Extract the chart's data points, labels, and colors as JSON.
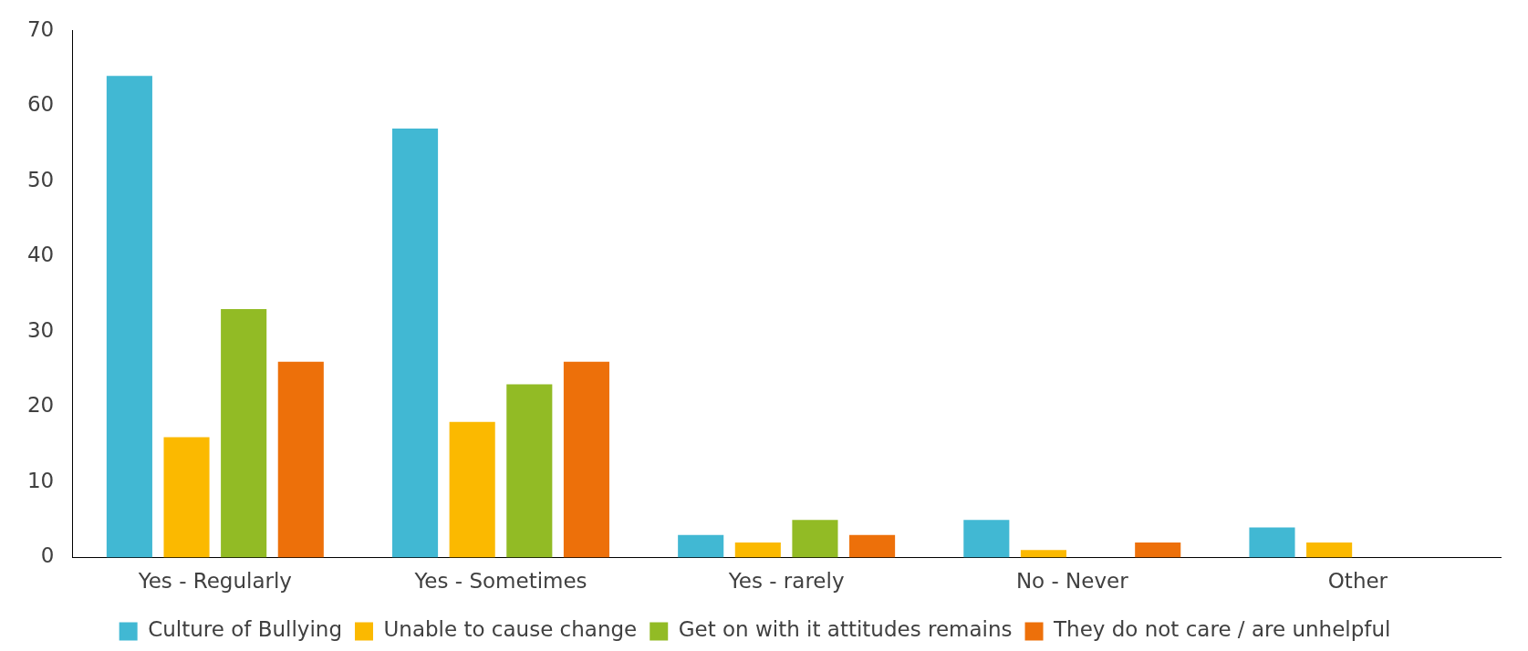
{
  "chart_data": {
    "type": "bar",
    "categories": [
      "Yes - Regularly",
      "Yes - Sometimes",
      "Yes - rarely",
      "No - Never",
      "Other"
    ],
    "series": [
      {
        "name": "Culture of Bullying",
        "color": "#41b8d3",
        "values": [
          64,
          57,
          3,
          5,
          4
        ]
      },
      {
        "name": "Unable to cause change",
        "color": "#fbb900",
        "values": [
          16,
          18,
          2,
          1,
          2
        ]
      },
      {
        "name": "Get on with it attitudes remains",
        "color": "#92bb25",
        "values": [
          33,
          23,
          5,
          0,
          0
        ]
      },
      {
        "name": "They do not care / are unhelpful",
        "color": "#ed700a",
        "values": [
          26,
          26,
          3,
          2,
          0
        ]
      }
    ],
    "ylim": [
      0,
      70
    ],
    "yticks": [
      0,
      10,
      20,
      30,
      40,
      50,
      60,
      70
    ],
    "grid": false,
    "legend": "bottom"
  }
}
